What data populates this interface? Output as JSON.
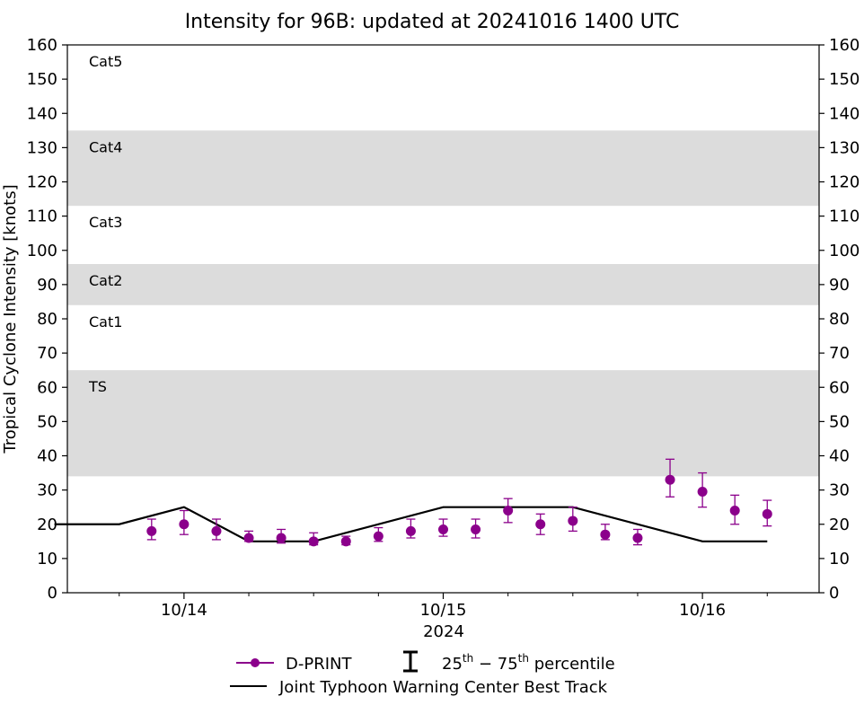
{
  "chart_data": {
    "type": "line",
    "title": "Intensity for 96B: updated at 20241016 1400 UTC",
    "ylabel": "Tropical Cyclone Intensity [knots]",
    "xlabel": "2024",
    "ylim": [
      0,
      160
    ],
    "yticks": [
      0,
      10,
      20,
      30,
      40,
      50,
      60,
      70,
      80,
      90,
      100,
      110,
      120,
      130,
      140,
      150,
      160
    ],
    "yticks_labels": [
      "0",
      "10",
      "20",
      "30",
      "40",
      "50",
      "60",
      "70",
      "80",
      "90",
      "100",
      "110",
      "120",
      "130",
      "140",
      "150",
      "160"
    ],
    "xlim_hours": [
      -14.5,
      14.5
    ],
    "xticks_major": [
      {
        "hour": -10,
        "label": "10/14"
      },
      {
        "hour": 0,
        "label": "10/15"
      },
      {
        "hour": 10,
        "label": "10/16"
      }
    ],
    "xticks_minor_hours": [
      -12.5,
      -7.5,
      -5,
      -2.5,
      2.5,
      5,
      7.5,
      12.5
    ],
    "category_bands": [
      {
        "label": "TS",
        "low": 34,
        "high": 65,
        "shaded": true
      },
      {
        "label": "Cat1",
        "low": 65,
        "high": 84,
        "shaded": false
      },
      {
        "label": "Cat2",
        "low": 84,
        "high": 96,
        "shaded": true
      },
      {
        "label": "Cat3",
        "low": 96,
        "high": 113,
        "shaded": false
      },
      {
        "label": "Cat4",
        "low": 113,
        "high": 135,
        "shaded": true
      },
      {
        "label": "Cat5",
        "low": 135,
        "high": 160,
        "shaded": false
      }
    ],
    "series": [
      {
        "name": "D-PRINT",
        "color": "#8b008b",
        "points": [
          {
            "hour": -11.25,
            "value": 18,
            "p25": 15.5,
            "p75": 21.5
          },
          {
            "hour": -10.0,
            "value": 20,
            "p25": 17,
            "p75": 24
          },
          {
            "hour": -8.75,
            "value": 18,
            "p25": 15.5,
            "p75": 21.5
          },
          {
            "hour": -7.5,
            "value": 16,
            "p25": 15,
            "p75": 18
          },
          {
            "hour": -6.25,
            "value": 16,
            "p25": 14.5,
            "p75": 18.5
          },
          {
            "hour": -5.0,
            "value": 15,
            "p25": 14,
            "p75": 17.5
          },
          {
            "hour": -3.75,
            "value": 15,
            "p25": 14,
            "p75": 16.5
          },
          {
            "hour": -2.5,
            "value": 16.5,
            "p25": 15,
            "p75": 19
          },
          {
            "hour": -1.25,
            "value": 18,
            "p25": 16,
            "p75": 21.5
          },
          {
            "hour": 0.0,
            "value": 18.5,
            "p25": 16.5,
            "p75": 21.5
          },
          {
            "hour": 1.25,
            "value": 18.5,
            "p25": 16,
            "p75": 21.5
          },
          {
            "hour": 2.5,
            "value": 24,
            "p25": 20.5,
            "p75": 27.5
          },
          {
            "hour": 3.75,
            "value": 20,
            "p25": 17,
            "p75": 23
          },
          {
            "hour": 5.0,
            "value": 21,
            "p25": 18,
            "p75": 25
          },
          {
            "hour": 6.25,
            "value": 17,
            "p25": 15.5,
            "p75": 20
          },
          {
            "hour": 7.5,
            "value": 16,
            "p25": 14,
            "p75": 18.5
          },
          {
            "hour": 8.75,
            "value": 33,
            "p25": 28,
            "p75": 39
          },
          {
            "hour": 10.0,
            "value": 29.5,
            "p25": 25,
            "p75": 35
          },
          {
            "hour": 11.25,
            "value": 24,
            "p25": 20,
            "p75": 28.5
          },
          {
            "hour": 12.5,
            "value": 23,
            "p25": 19.5,
            "p75": 27
          }
        ]
      },
      {
        "name": "Joint Typhoon Warning Center Best Track",
        "color": "#000000",
        "points": [
          {
            "hour": -15.0,
            "value": 20
          },
          {
            "hour": -12.5,
            "value": 20
          },
          {
            "hour": -10.0,
            "value": 25
          },
          {
            "hour": -7.5,
            "value": 15
          },
          {
            "hour": -5.0,
            "value": 15
          },
          {
            "hour": 0.0,
            "value": 25
          },
          {
            "hour": 5.0,
            "value": 25
          },
          {
            "hour": 10.0,
            "value": 15
          },
          {
            "hour": 12.5,
            "value": 15
          }
        ]
      }
    ],
    "band_color": "#dcdcdc"
  },
  "legend": {
    "dprint_label": "D-PRINT",
    "percentile_prefix": "25",
    "percentile_sup1": "th",
    "percentile_mid": " − 75",
    "percentile_sup2": "th",
    "percentile_suffix": " percentile",
    "besttrack_label": "Joint Typhoon Warning Center Best Track"
  }
}
